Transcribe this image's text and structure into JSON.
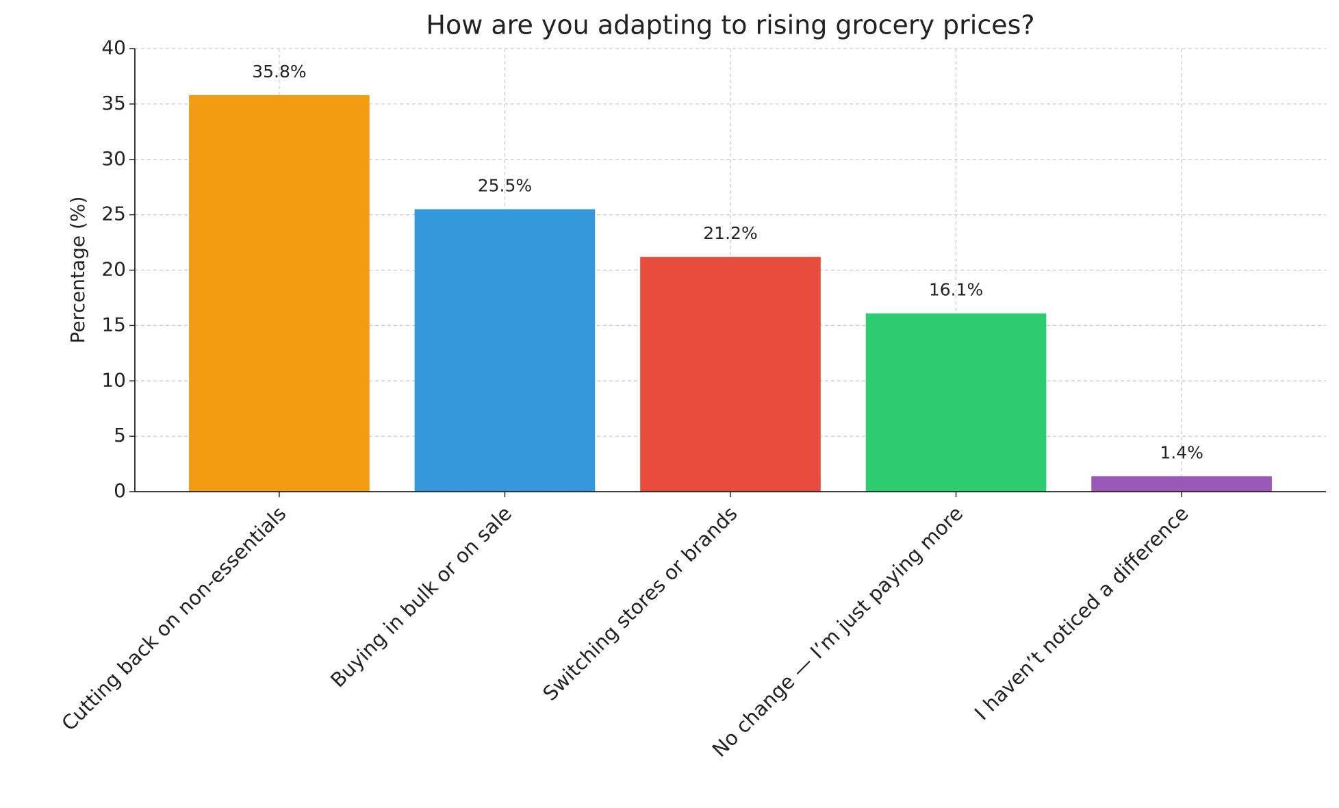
{
  "chart_data": {
    "type": "bar",
    "title": "How are you adapting to rising grocery prices?",
    "y_label": "Percentage (%)",
    "categories": [
      "Cutting back on non-essentials",
      "Buying in bulk or on sale",
      "Switching stores or brands",
      "No change — I’m just paying more",
      "I haven’t noticed a difference"
    ],
    "values": [
      35.8,
      25.5,
      21.2,
      16.1,
      1.4
    ],
    "value_labels": [
      "35.8%",
      "25.5%",
      "21.2%",
      "16.1%",
      "1.4%"
    ],
    "colors": [
      "#f39c12",
      "#3498db",
      "#e74c3c",
      "#2ecc71",
      "#9b59b6"
    ],
    "ylim": [
      0,
      40
    ],
    "yticks": [
      0,
      5,
      10,
      15,
      20,
      25,
      30,
      35,
      40
    ],
    "grid": true
  }
}
